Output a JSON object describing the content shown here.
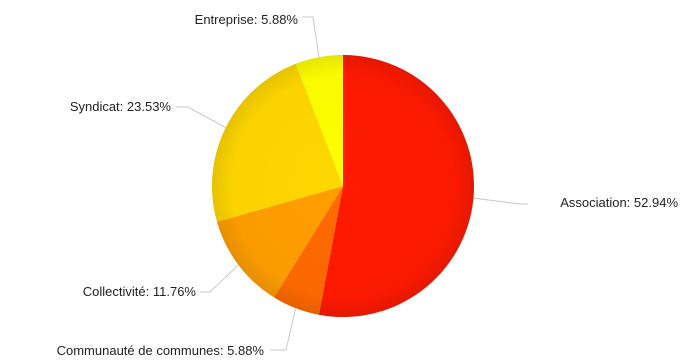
{
  "chart_data": {
    "type": "pie",
    "title": "",
    "slices": [
      {
        "label": "Association",
        "value": 52.94,
        "text": "Association: 52.94%",
        "color": "#ff1a00"
      },
      {
        "label": "Communauté de communes",
        "value": 5.88,
        "text": "Communauté de communes: 5.88%",
        "color": "#ff6a00"
      },
      {
        "label": "Collectivité",
        "value": 11.76,
        "text": "Collectivité: 11.76%",
        "color": "#ff9e00"
      },
      {
        "label": "Syndicat",
        "value": 23.53,
        "text": "Syndicat: 23.53%",
        "color": "#ffd700"
      },
      {
        "label": "Entreprise",
        "value": 5.88,
        "text": "Entreprise: 5.88%",
        "color": "#ffff00"
      }
    ],
    "start": "top",
    "direction": "clockwise",
    "legend": "none",
    "labels": "outside-with-leader-lines"
  }
}
